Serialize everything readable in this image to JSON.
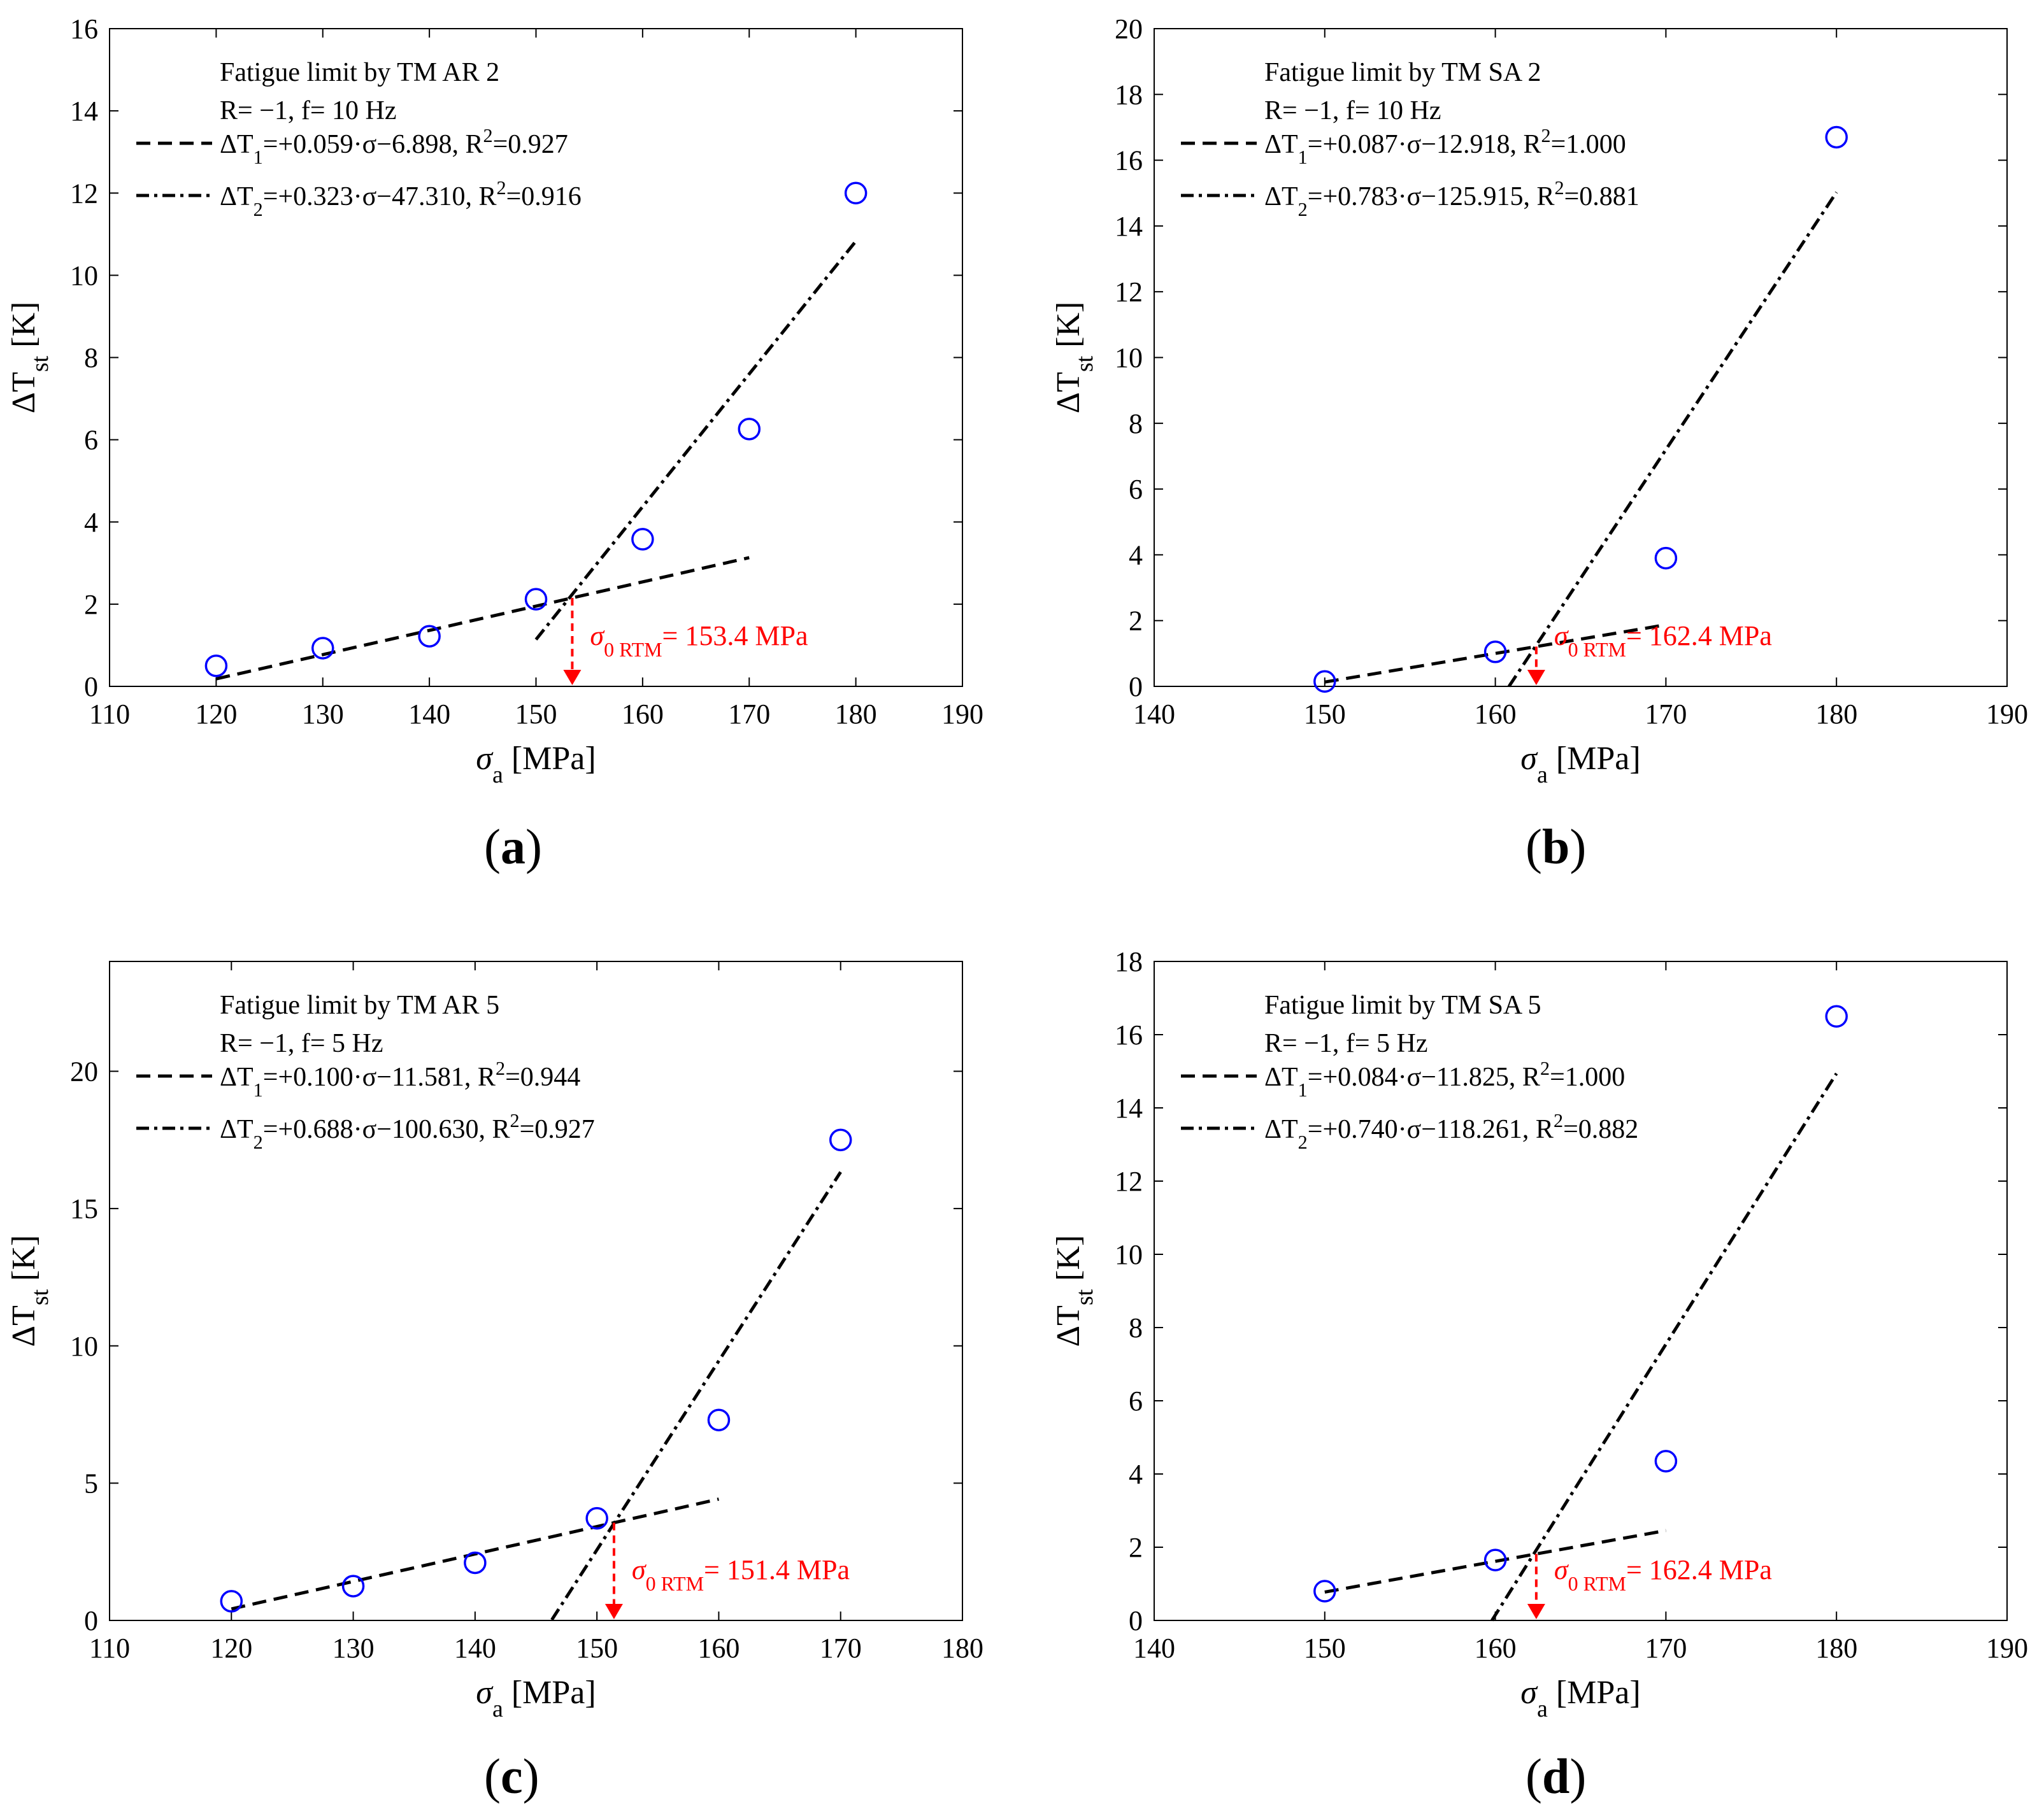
{
  "colors": {
    "markers": "#0000ff",
    "annotation": "#ff0000",
    "lines": "#000000"
  },
  "chart_data": [
    {
      "type": "scatter",
      "panel_label": "a",
      "title": "Fatigue limit by TM AR 2",
      "subtitle": "R= −1, f= 10 Hz",
      "xlabel_main": "σ",
      "xlabel_sub": "a",
      "xlabel_unit": " [MPa]",
      "ylabel_main": "ΔT",
      "ylabel_sub": "st",
      "ylabel_unit": " [K]",
      "xlim": [
        110,
        190
      ],
      "ylim": [
        0,
        16
      ],
      "xticks": [
        110,
        120,
        130,
        140,
        150,
        160,
        170,
        180,
        190
      ],
      "yticks": [
        0,
        2,
        4,
        6,
        8,
        10,
        12,
        14,
        16
      ],
      "points": {
        "x": [
          120,
          130,
          140,
          150,
          160,
          170,
          180
        ],
        "y": [
          0.5,
          0.93,
          1.22,
          2.12,
          3.58,
          6.26,
          12.0
        ]
      },
      "fit1": {
        "legend": "ΔT₁=+0.059·σ−6.898, R²=0.927",
        "slope": 0.059,
        "intercept": -6.898,
        "x": [
          120,
          170
        ]
      },
      "fit2": {
        "legend": "ΔT₂=+0.323·σ−47.310, R²=0.916",
        "slope": 0.323,
        "intercept": -47.31,
        "x": [
          150,
          180
        ]
      },
      "fatigue_limit": {
        "value": 153.4,
        "label_main": "σ",
        "label_sub": "0 RTM",
        "label_rest": "= 153.4 MPa"
      }
    },
    {
      "type": "scatter",
      "panel_label": "b",
      "title": "Fatigue limit by TM SA 2",
      "subtitle": "R= −1, f= 10 Hz",
      "xlabel_main": "σ",
      "xlabel_sub": "a",
      "xlabel_unit": " [MPa]",
      "ylabel_main": "ΔT",
      "ylabel_sub": "st",
      "ylabel_unit": " [K]",
      "xlim": [
        140,
        190
      ],
      "ylim": [
        0,
        20
      ],
      "xticks": [
        140,
        150,
        160,
        170,
        180,
        190
      ],
      "yticks": [
        0,
        2,
        4,
        6,
        8,
        10,
        12,
        14,
        16,
        18,
        20
      ],
      "points": {
        "x": [
          150,
          160,
          170,
          180
        ],
        "y": [
          0.15,
          1.05,
          3.9,
          16.7
        ]
      },
      "fit1": {
        "legend": "ΔT₁=+0.087·σ−12.918, R²=1.000",
        "slope": 0.087,
        "intercept": -12.918,
        "x": [
          150,
          170
        ]
      },
      "fit2": {
        "legend": "ΔT₂=+0.783·σ−125.915, R²=0.881",
        "slope": 0.783,
        "intercept": -125.915,
        "x": [
          160.8,
          180
        ]
      },
      "fatigue_limit": {
        "value": 162.4,
        "label_main": "σ",
        "label_sub": "0 RTM",
        "label_rest": "= 162.4 MPa"
      }
    },
    {
      "type": "scatter",
      "panel_label": "c",
      "title": "Fatigue limit by TM AR 5",
      "subtitle": "R= −1, f= 5 Hz",
      "xlabel_main": "σ",
      "xlabel_sub": "a",
      "xlabel_unit": " [MPa]",
      "ylabel_main": "ΔT",
      "ylabel_sub": "st",
      "ylabel_unit": " [K]",
      "xlim": [
        110,
        180
      ],
      "ylim": [
        0,
        24
      ],
      "xticks": [
        110,
        120,
        130,
        140,
        150,
        160,
        170,
        180
      ],
      "yticks": [
        0,
        5,
        10,
        15,
        20
      ],
      "points": {
        "x": [
          120,
          130,
          140,
          150,
          160,
          170
        ],
        "y": [
          0.7,
          1.25,
          2.1,
          3.72,
          7.3,
          17.5
        ]
      },
      "fit1": {
        "legend": "ΔT₁=+0.100·σ−11.581, R²=0.944",
        "slope": 0.1,
        "intercept": -11.581,
        "x": [
          120,
          160
        ]
      },
      "fit2": {
        "legend": "ΔT₂=+0.688·σ−100.630, R²=0.927",
        "slope": 0.688,
        "intercept": -100.63,
        "x": [
          146.3,
          170
        ]
      },
      "fatigue_limit": {
        "value": 151.4,
        "label_main": "σ",
        "label_sub": "0 RTM",
        "label_rest": "= 151.4 MPa"
      }
    },
    {
      "type": "scatter",
      "panel_label": "d",
      "title": "Fatigue limit by TM SA 5",
      "subtitle": "R= −1, f= 5 Hz",
      "xlabel_main": "σ",
      "xlabel_sub": "a",
      "xlabel_unit": " [MPa]",
      "ylabel_main": "ΔT",
      "ylabel_sub": "st",
      "ylabel_unit": " [K]",
      "xlim": [
        140,
        190
      ],
      "ylim": [
        0,
        18
      ],
      "xticks": [
        140,
        150,
        160,
        170,
        180,
        190
      ],
      "yticks": [
        0,
        2,
        4,
        6,
        8,
        10,
        12,
        14,
        16,
        18
      ],
      "points": {
        "x": [
          150,
          160,
          170,
          180
        ],
        "y": [
          0.8,
          1.65,
          4.35,
          16.5
        ]
      },
      "fit1": {
        "legend": "ΔT₁=+0.084·σ−11.825, R²=1.000",
        "slope": 0.084,
        "intercept": -11.825,
        "x": [
          150,
          170
        ]
      },
      "fit2": {
        "legend": "ΔT₂=+0.740·σ−118.261, R²=0.882",
        "slope": 0.74,
        "intercept": -118.261,
        "x": [
          159.8,
          180
        ]
      },
      "fatigue_limit": {
        "value": 162.4,
        "label_main": "σ",
        "label_sub": "0 RTM",
        "label_rest": "= 162.4 MPa"
      }
    }
  ]
}
